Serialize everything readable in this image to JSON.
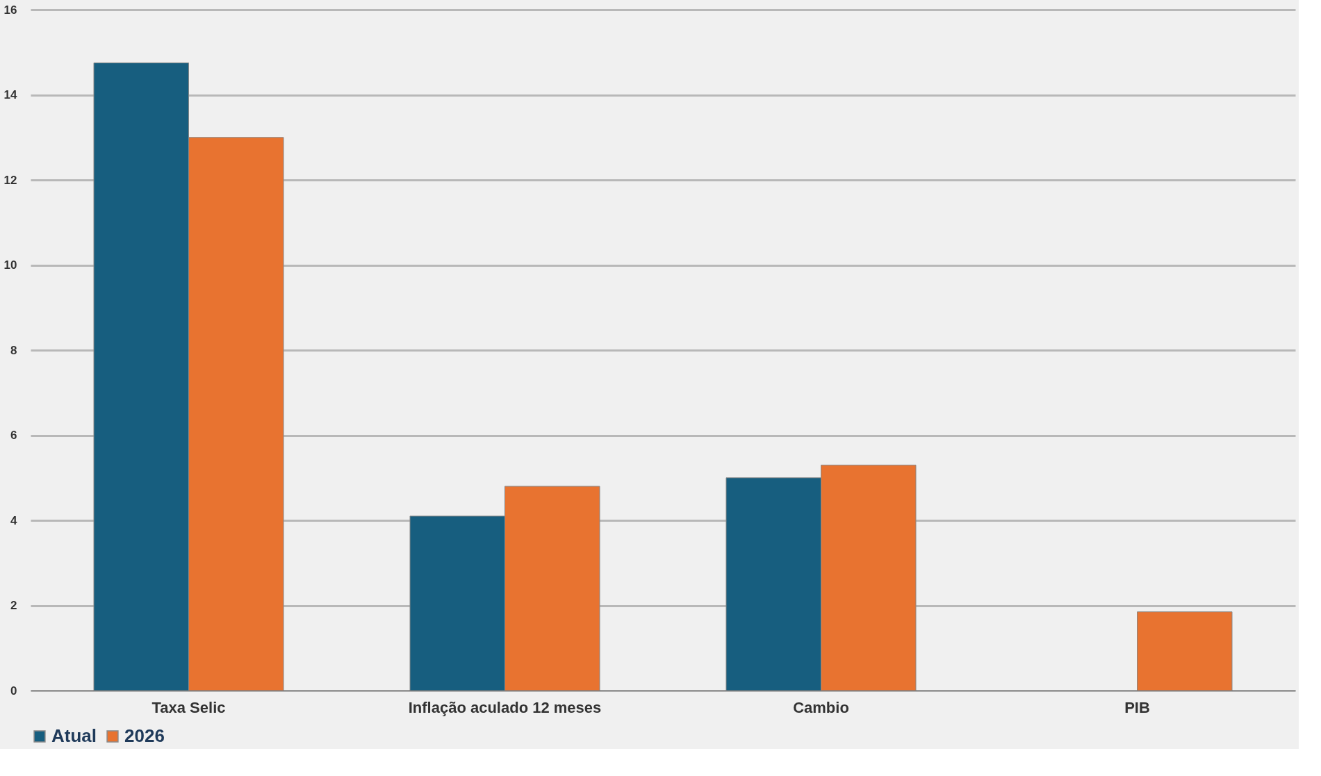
{
  "chart_data": {
    "type": "bar",
    "categories": [
      "Taxa Selic",
      "Inflação aculado 12 meses",
      "Cambio",
      "PIB"
    ],
    "series": [
      {
        "name": "Atual",
        "color": "#175e7f",
        "values": [
          14.75,
          4.1,
          5.0,
          null
        ]
      },
      {
        "name": "2026",
        "color": "#e87330",
        "values": [
          13.0,
          4.8,
          5.3,
          1.85
        ]
      }
    ],
    "ylim": [
      0,
      16
    ],
    "yticks": [
      0,
      2,
      4,
      6,
      8,
      10,
      12,
      14,
      16
    ],
    "grid": "y",
    "legend": "bottom"
  }
}
